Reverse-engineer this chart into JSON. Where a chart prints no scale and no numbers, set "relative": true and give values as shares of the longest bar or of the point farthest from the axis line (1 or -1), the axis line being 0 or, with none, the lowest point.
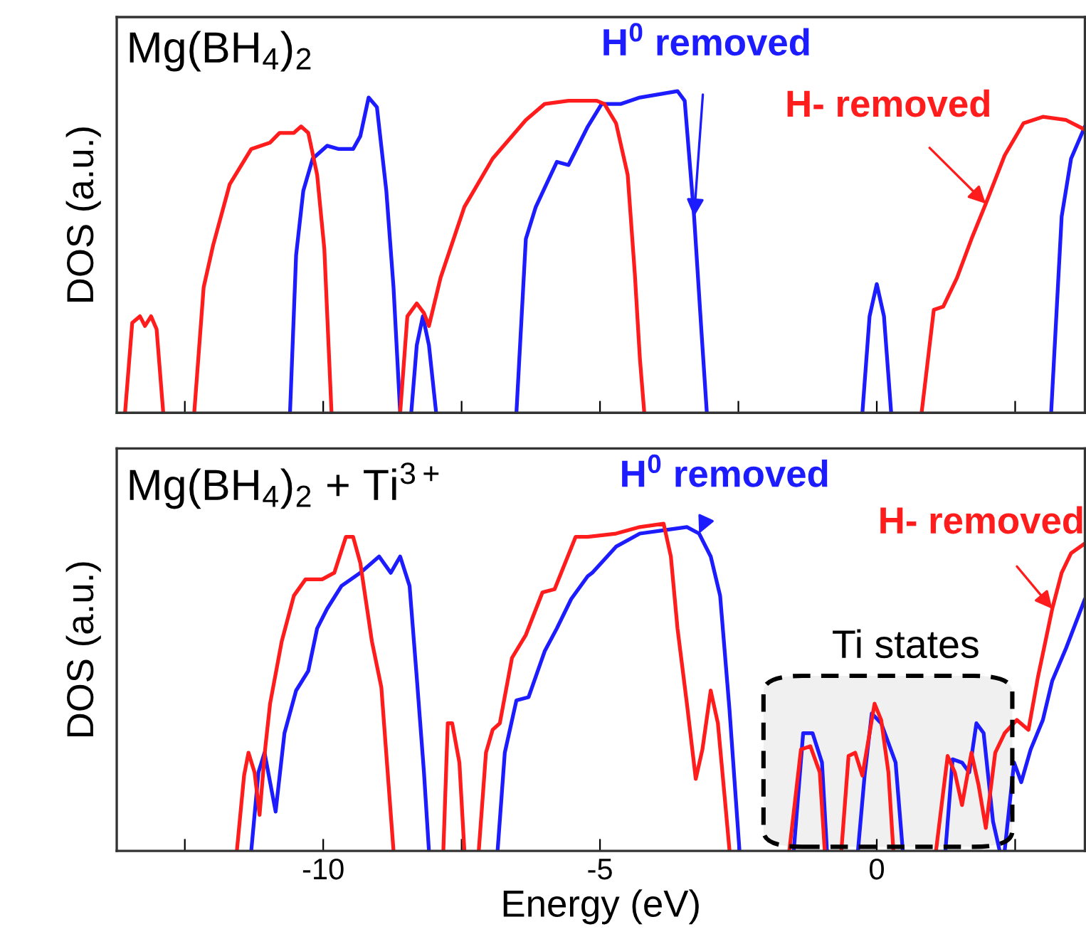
{
  "chart_data": [
    {
      "type": "line",
      "title": "Mg(BH$_{4}$)$_{2}$",
      "ylabel": "DOS (a.u.)",
      "relative": true,
      "tick_labels": false,
      "xlim": [
        -13.73,
        3.76
      ],
      "xticks": [
        {
          "value": -12.5,
          "label": null
        },
        -10,
        {
          "value": -7.5,
          "label": null
        },
        -5,
        {
          "value": -2.5,
          "label": null
        },
        0,
        {
          "value": 2.5,
          "label": null
        }
      ],
      "annotations": [
        {
          "text": "H$^{0}$ removed",
          "x": -3.3,
          "y": 0.61
        },
        {
          "text": "H- removed",
          "x": 1.97,
          "y": 0.65
        }
      ],
      "series": [
        {
          "color": "#1c1cff",
          "x": [
            -10.6,
            -10.49,
            -10.36,
            -10.19,
            -9.93,
            -9.72,
            -9.46,
            -9.33,
            -9.18,
            -9.03,
            -8.86,
            -8.73,
            -8.61,
            -8.5,
            -8.41,
            -8.31,
            -8.2,
            -8.09,
            -7.96,
            -7.2,
            -6.51,
            -6.34,
            -6.16,
            -5.78,
            -5.57,
            -5.22,
            -4.97,
            -4.62,
            -4.28,
            -3.94,
            -3.6,
            -3.47,
            -3.3,
            -3.17,
            -3.07,
            -1.6,
            -0.26,
            -0.13,
            0.0,
            0.13,
            0.26,
            1.7,
            3.15,
            3.34,
            3.51,
            3.76
          ],
          "values": [
            0,
            0.49,
            0.69,
            0.79,
            0.83,
            0.82,
            0.82,
            0.86,
            0.98,
            0.95,
            0.69,
            0.39,
            0,
            null,
            0,
            0.21,
            0.3,
            0.21,
            0,
            null,
            0,
            0.54,
            0.64,
            0.78,
            0.77,
            0.89,
            0.96,
            0.96,
            0.98,
            0.99,
            1.0,
            0.97,
            0.61,
            0.26,
            0,
            null,
            0,
            0.3,
            0.4,
            0.3,
            0,
            null,
            0,
            0.61,
            0.79,
            0.89
          ]
        },
        {
          "color": "#ff1c1c",
          "x": [
            -13.58,
            -13.45,
            -13.31,
            -13.22,
            -13.11,
            -13.01,
            -12.89,
            -12.6,
            -12.33,
            -12.16,
            -11.99,
            -11.69,
            -11.3,
            -10.96,
            -10.79,
            -10.53,
            -10.4,
            -10.27,
            -10.11,
            -9.98,
            -9.85,
            -9.2,
            -8.61,
            -8.48,
            -8.31,
            -8.18,
            -8.09,
            -7.88,
            -7.45,
            -6.94,
            -6.34,
            -6.0,
            -5.57,
            -5.06,
            -4.92,
            -4.71,
            -4.5,
            -4.37,
            -4.28,
            -4.2,
            -1.7,
            0.81,
            1.03,
            1.2,
            1.45,
            1.71,
            1.97,
            2.31,
            2.65,
            3.0,
            3.42,
            3.76
          ],
          "values": [
            0,
            0.28,
            0.3,
            0.27,
            0.3,
            0.26,
            0,
            null,
            0,
            0.39,
            0.52,
            0.71,
            0.82,
            0.84,
            0.87,
            0.87,
            0.89,
            0.87,
            0.74,
            0.51,
            0,
            null,
            0,
            0.3,
            0.34,
            0.31,
            0.27,
            0.42,
            0.64,
            0.79,
            0.91,
            0.96,
            0.97,
            0.97,
            0.96,
            0.9,
            0.74,
            0.43,
            0.17,
            0,
            null,
            0,
            0.32,
            0.33,
            0.42,
            0.54,
            0.65,
            0.8,
            0.9,
            0.92,
            0.91,
            0.88
          ]
        }
      ]
    },
    {
      "type": "line",
      "title": "Mg(BH$_{4}$)$_{2}$ + Ti$^{3+}$",
      "ylabel": "DOS (a.u.)",
      "xlabel": "Energy (eV)",
      "relative": true,
      "tick_labels": "x",
      "xlim": [
        -13.73,
        3.76
      ],
      "xticks": [
        {
          "value": -12.5,
          "label": null
        },
        -10,
        {
          "value": -7.5,
          "label": null
        },
        -5,
        {
          "value": -2.5,
          "label": null
        },
        0,
        {
          "value": 2.5,
          "label": null
        }
      ],
      "annotations": [
        {
          "text": "H$^{0}$ removed",
          "x": -3.21,
          "y": 0.97
        },
        {
          "text": "H- removed",
          "x": 3.17,
          "y": 0.74
        },
        "Ti states"
      ],
      "series": [
        {
          "color": "#1c1cff",
          "x": [
            -11.3,
            -11.17,
            -11.06,
            -10.96,
            -10.86,
            -10.7,
            -10.49,
            -10.27,
            -10.11,
            -9.93,
            -9.67,
            -9.33,
            -8.99,
            -8.78,
            -8.61,
            -8.44,
            -8.31,
            -8.18,
            -8.09,
            -7.5,
            -6.85,
            -6.72,
            -6.51,
            -6.29,
            -6.0,
            -5.78,
            -5.52,
            -5.22,
            -5.14,
            -4.71,
            -4.28,
            -3.85,
            -3.43,
            -3.21,
            -3.0,
            -2.83,
            -2.66,
            -2.48,
            -2.0,
            -1.5,
            -1.33,
            -1.16,
            -0.99,
            -0.9,
            -0.6,
            -0.34,
            -0.22,
            -0.09,
            0.08,
            0.34,
            0.47,
            0.9,
            1.24,
            1.37,
            1.54,
            1.67,
            1.8,
            1.93,
            2.1,
            2.22,
            2.26,
            2.31,
            2.48,
            2.61,
            2.78,
            3.0,
            3.17,
            3.42,
            3.76
          ],
          "values": [
            0,
            0.24,
            0.3,
            0.21,
            0.12,
            0.36,
            0.49,
            0.55,
            0.68,
            0.74,
            0.81,
            0.85,
            0.9,
            0.85,
            0.9,
            0.81,
            0.53,
            0.24,
            0,
            null,
            0,
            0.3,
            0.46,
            0.47,
            0.61,
            0.68,
            0.77,
            0.84,
            0.85,
            0.93,
            0.97,
            0.98,
            0.99,
            0.97,
            0.9,
            0.78,
            0.43,
            0,
            null,
            0,
            0.36,
            0.36,
            0.27,
            0,
            null,
            0,
            0.23,
            0.42,
            0.39,
            0.27,
            0,
            null,
            0,
            0.28,
            0.27,
            0.24,
            0.39,
            0.36,
            0.09,
            0,
            null,
            0,
            0.27,
            0.21,
            0.31,
            0.4,
            0.52,
            0.62,
            0.77
          ]
        },
        {
          "color": "#ff1c1c",
          "x": [
            -11.56,
            -11.43,
            -11.35,
            -11.24,
            -11.15,
            -11.05,
            -10.96,
            -10.75,
            -10.53,
            -10.32,
            -10.02,
            -9.8,
            -9.59,
            -9.46,
            -9.33,
            -9.12,
            -8.95,
            -8.73,
            -8.3,
            -7.83,
            -7.75,
            -7.67,
            -7.54,
            -7.45,
            -7.3,
            -7.19,
            -7.06,
            -6.94,
            -6.81,
            -6.59,
            -6.34,
            -6.04,
            -5.82,
            -5.44,
            -5.22,
            -4.71,
            -4.28,
            -3.85,
            -3.72,
            -3.6,
            -3.43,
            -3.27,
            -3.15,
            -3.0,
            -2.87,
            -2.74,
            -2.66,
            -2.1,
            -1.58,
            -1.37,
            -1.2,
            -1.03,
            -0.94,
            -0.8,
            -0.64,
            -0.51,
            -0.39,
            -0.26,
            -0.04,
            0.08,
            0.21,
            0.3,
            0.7,
            1.07,
            1.28,
            1.41,
            1.54,
            1.71,
            1.84,
            1.97,
            2.14,
            2.31,
            2.53,
            2.74,
            2.91,
            3.17,
            3.34,
            3.51,
            3.76
          ],
          "values": [
            0,
            0.23,
            0.3,
            0.24,
            0.11,
            0.31,
            0.45,
            0.64,
            0.78,
            0.83,
            0.83,
            0.85,
            0.96,
            0.96,
            0.88,
            0.64,
            0.5,
            0,
            null,
            0,
            0.39,
            0.39,
            0.27,
            0,
            null,
            0,
            0.3,
            0.37,
            0.39,
            0.59,
            0.66,
            0.79,
            0.8,
            0.96,
            0.96,
            0.97,
            0.99,
            1.0,
            0.9,
            0.68,
            0.45,
            0.22,
            0.31,
            0.49,
            0.39,
            0.15,
            0,
            null,
            0,
            0.31,
            0.32,
            0.24,
            0,
            null,
            0,
            0.29,
            0.3,
            0.23,
            0.45,
            0.4,
            0.24,
            0,
            null,
            0,
            0.29,
            0.24,
            0.14,
            0.3,
            0.2,
            0.07,
            0.3,
            0.36,
            0.4,
            0.37,
            0.53,
            0.74,
            0.85,
            0.91,
            0.94
          ]
        }
      ]
    }
  ]
}
